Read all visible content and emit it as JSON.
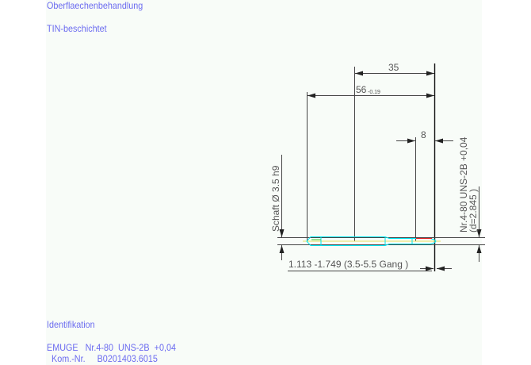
{
  "header": {
    "surface_label": "Oberflaechenbehandlung",
    "surface_value": "TIN-beschichtet"
  },
  "drawing": {
    "dim_thread_length": "35",
    "dim_total_length": "56",
    "dim_total_tolerance": "-0.19",
    "dim_chamfer": "8",
    "shank_label": "Schaft Ø 3.5  h9",
    "thread_label": "Nr.4-80 UNS-2B  +0,04",
    "thread_diameter": "(d=2.845  )",
    "core_label": "1.113  -1.749 (3.5-5.5 Gang  )",
    "colors": {
      "outline": "#00e5f0",
      "centerline": "#e8e060",
      "thread_mark": "#e02020",
      "dim": "#333333"
    }
  },
  "footer": {
    "ident_label": "Identifikation",
    "ident_line1": "EMUGE   Nr.4-80  UNS-2B  +0,04",
    "ident_line2": "  Kom.-Nr.     B0201403.6015"
  }
}
